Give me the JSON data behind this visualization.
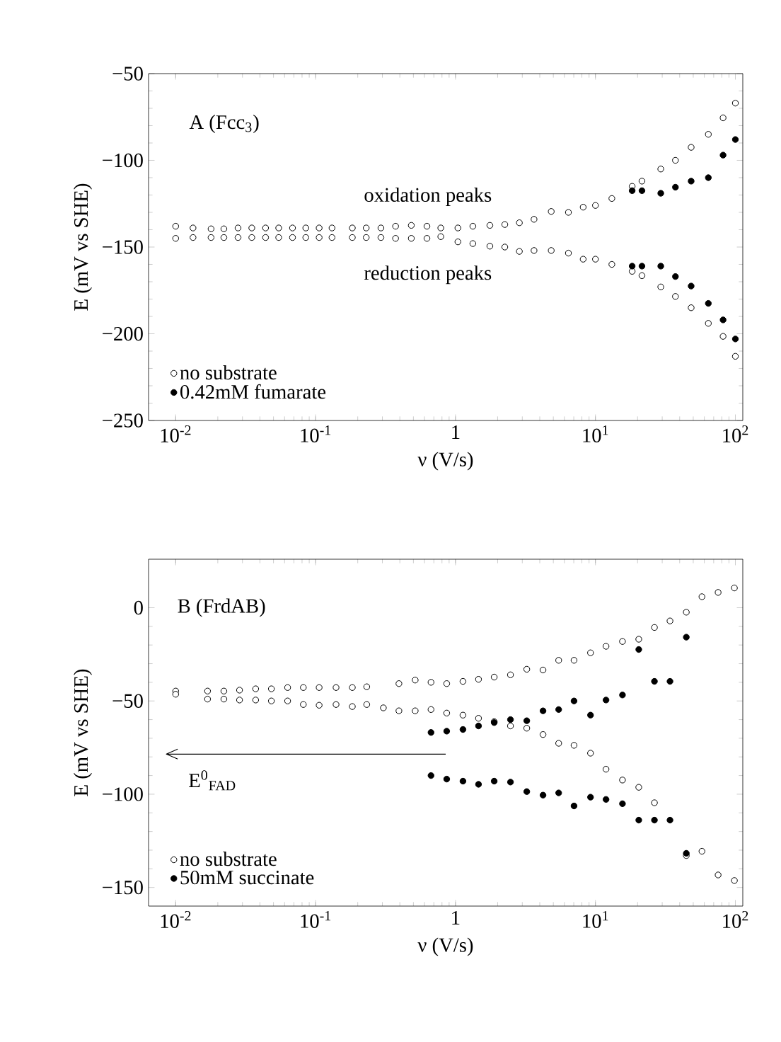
{
  "chart_data": [
    {
      "type": "scatter",
      "xlabel": "ν (V/s)",
      "ylabel": "E (mV vs SHE)",
      "log": "x",
      "marker": "circle",
      "legend": "bottom left",
      "grid": false,
      "xlim": [
        0.0064,
        113
      ],
      "ylim": [
        -250,
        -50
      ],
      "xticks": [
        {
          "value": 0.01,
          "label": "10$^{-2}$"
        },
        {
          "value": 0.1,
          "label": "10$^{-1}$"
        },
        {
          "value": 1,
          "label": "1"
        },
        {
          "value": 10,
          "label": "10$^{1}$"
        },
        {
          "value": 100,
          "label": "10$^{2}$"
        }
      ],
      "yticks": [
        {
          "value": -250,
          "label": "−250"
        },
        {
          "value": -200,
          "label": "−200"
        },
        {
          "value": -150,
          "label": "−150"
        },
        {
          "value": -100,
          "label": "−100"
        },
        {
          "value": -50,
          "label": "−50"
        }
      ],
      "annotations": [
        "A (Fcc$_{3}$)",
        "oxidation peaks",
        "reduction peaks"
      ],
      "series": [
        {
          "name": "no substrate",
          "color": "#000000",
          "x": [
            0.01,
            0.0133,
            0.0179,
            0.0221,
            0.0279,
            0.035,
            0.0439,
            0.0545,
            0.0684,
            0.0851,
            0.106,
            0.131,
            0.183,
            0.23,
            0.293,
            0.373,
            0.483,
            0.625,
            0.785,
            1.04,
            1.33,
            1.76,
            2.25,
            2.86,
            3.64,
            4.83,
            6.41,
            8.17,
            10.0,
            13.1,
            18.3,
            21.5,
            29.3,
            37.3,
            48.3,
            64.1,
            81.7,
            100,
            0.01,
            0.0133,
            0.0179,
            0.0221,
            0.0279,
            0.035,
            0.0439,
            0.0545,
            0.0684,
            0.0851,
            0.106,
            0.131,
            0.183,
            0.23,
            0.293,
            0.373,
            0.483,
            0.625,
            0.785,
            1.04,
            1.33,
            1.76,
            2.25,
            2.86,
            3.64,
            4.83,
            6.41,
            8.17,
            10.0,
            13.1,
            18.3,
            21.5,
            29.3,
            37.3,
            48.3,
            64.1,
            81.7,
            100
          ],
          "values": [
            -138,
            -139,
            -139.5,
            -139.5,
            -139,
            -139,
            -139,
            -139,
            -139,
            -139,
            -139,
            -139,
            -139,
            -139,
            -139,
            -138,
            -137.5,
            -138,
            -139,
            -139,
            -138,
            -137.5,
            -137,
            -136,
            -134,
            -129.5,
            -130,
            -127,
            -126,
            -122,
            -115,
            -112,
            -105,
            -100,
            -92.5,
            -85,
            -75.5,
            -67,
            -145,
            -144.5,
            -144.5,
            -144.5,
            -144.5,
            -144.5,
            -144.5,
            -144.5,
            -144.5,
            -144.5,
            -144.5,
            -144.5,
            -144.5,
            -144.5,
            -144.5,
            -145,
            -145,
            -145,
            -144,
            -147,
            -148,
            -149.5,
            -150,
            -152.5,
            -152,
            -152,
            -153.5,
            -157,
            -157,
            -160,
            -164,
            -166.5,
            -173,
            -178.5,
            -185,
            -194,
            -201.5,
            -213
          ]
        },
        {
          "name": "0.42mM fumarate",
          "color": "#000000",
          "x": [
            18.3,
            21.5,
            29.3,
            37.3,
            48.3,
            64.1,
            81.7,
            100,
            18.3,
            21.5,
            29.3,
            37.3,
            48.3,
            64.1,
            81.7,
            100
          ],
          "values": [
            -117.5,
            -117.5,
            -119,
            -115.5,
            -112,
            -110,
            -97,
            -88,
            -161,
            -161,
            -161,
            -167,
            -172.5,
            -182.5,
            -192,
            -203
          ]
        }
      ]
    },
    {
      "type": "scatter",
      "xlabel": "ν (V/s)",
      "ylabel": "E (mV vs SHE)",
      "log": "x",
      "marker": "circle",
      "legend": "bottom left",
      "grid": false,
      "xlim": [
        0.0064,
        113
      ],
      "ylim": [
        -160,
        26
      ],
      "xticks": [
        {
          "value": 0.01,
          "label": "10$^{-2}$"
        },
        {
          "value": 0.1,
          "label": "10$^{-1}$"
        },
        {
          "value": 1,
          "label": "1"
        },
        {
          "value": 10,
          "label": "10$^{1}$"
        },
        {
          "value": 100,
          "label": "10$^{2}$"
        }
      ],
      "yticks": [
        {
          "value": -150,
          "label": "−150"
        },
        {
          "value": -100,
          "label": "−100"
        },
        {
          "value": -50,
          "label": "−50"
        },
        {
          "value": 0,
          "label": "0"
        }
      ],
      "annotations": [
        "B (FrdAB)"
      ],
      "ref_lines": [
        {
          "axis": "y",
          "value": -78.5,
          "label": "E$^{0}$$_{FAD}$",
          "color": "#000000"
        }
      ],
      "series": [
        {
          "name": "no substrate",
          "color": "#000000",
          "x": [
            0.01,
            0.01,
            0.0169,
            0.0221,
            0.0286,
            0.0373,
            0.0483,
            0.0631,
            0.0817,
            0.106,
            0.14,
            0.183,
            0.232,
            0.394,
            0.515,
            0.668,
            0.865,
            1.13,
            1.46,
            1.89,
            2.47,
            3.23,
            4.22,
            5.46,
            7.03,
            9.22,
            11.9,
            15.6,
            20.4,
            26.4,
            34.1,
            44.6,
            57.7,
            75.3,
            98.4,
            0.0169,
            0.0221,
            0.0286,
            0.0373,
            0.0483,
            0.0631,
            0.0817,
            0.106,
            0.14,
            0.183,
            0.232,
            0.305,
            0.394,
            0.515,
            0.668,
            0.865,
            1.13,
            1.46,
            1.89,
            2.47,
            3.23,
            4.22,
            5.46,
            7.03,
            9.22,
            11.9,
            15.6,
            20.4,
            26.4,
            44.6,
            57.7,
            75.3,
            98.4
          ],
          "values": [
            -44.7,
            -46.4,
            -44.7,
            -44.7,
            -44.2,
            -43.5,
            -43.5,
            -42.8,
            -42.8,
            -42.8,
            -42.8,
            -42.8,
            -42.4,
            -40.7,
            -38.8,
            -40,
            -40.7,
            -39.5,
            -38.4,
            -37.2,
            -36,
            -33,
            -33.4,
            -28.2,
            -28.2,
            -24.2,
            -20.7,
            -18.1,
            -16.9,
            -10.6,
            -7.1,
            -2.4,
            5.9,
            8.2,
            10.6,
            -49,
            -49,
            -49.5,
            -49.5,
            -50,
            -50,
            -51.9,
            -52.3,
            -51.9,
            -53,
            -51.9,
            -53.7,
            -55.3,
            -55.3,
            -54.6,
            -56.5,
            -57.6,
            -59.3,
            -61.1,
            -63.4,
            -64.6,
            -68,
            -72.7,
            -73.8,
            -78,
            -86.6,
            -92.4,
            -96.3,
            -104.6,
            -132.9,
            -130.6,
            -143.3,
            -146.3
          ]
        },
        {
          "name": "50mM succinate",
          "color": "#000000",
          "x": [
            0.668,
            0.865,
            1.13,
            1.46,
            1.89,
            2.47,
            3.23,
            4.22,
            5.46,
            7.03,
            9.22,
            11.9,
            15.6,
            20.4,
            26.4,
            34.1,
            44.6,
            0.668,
            0.865,
            1.13,
            1.46,
            1.89,
            2.47,
            3.23,
            4.22,
            5.46,
            7.03,
            9.22,
            11.9,
            15.6,
            20.4,
            26.4,
            34.1,
            44.6
          ],
          "values": [
            -66.9,
            -66.2,
            -65.3,
            -63.4,
            -61.6,
            -60,
            -60.6,
            -55.3,
            -54.6,
            -50,
            -57.6,
            -49.5,
            -46.8,
            -22.4,
            -39.5,
            -39.5,
            -15.8,
            -90,
            -91.9,
            -93,
            -94.7,
            -93,
            -93.5,
            -98.6,
            -100.5,
            -99.3,
            -106.3,
            -101.6,
            -102.8,
            -105.1,
            -113.9,
            -113.9,
            -113.9,
            -131.7
          ]
        }
      ]
    }
  ]
}
